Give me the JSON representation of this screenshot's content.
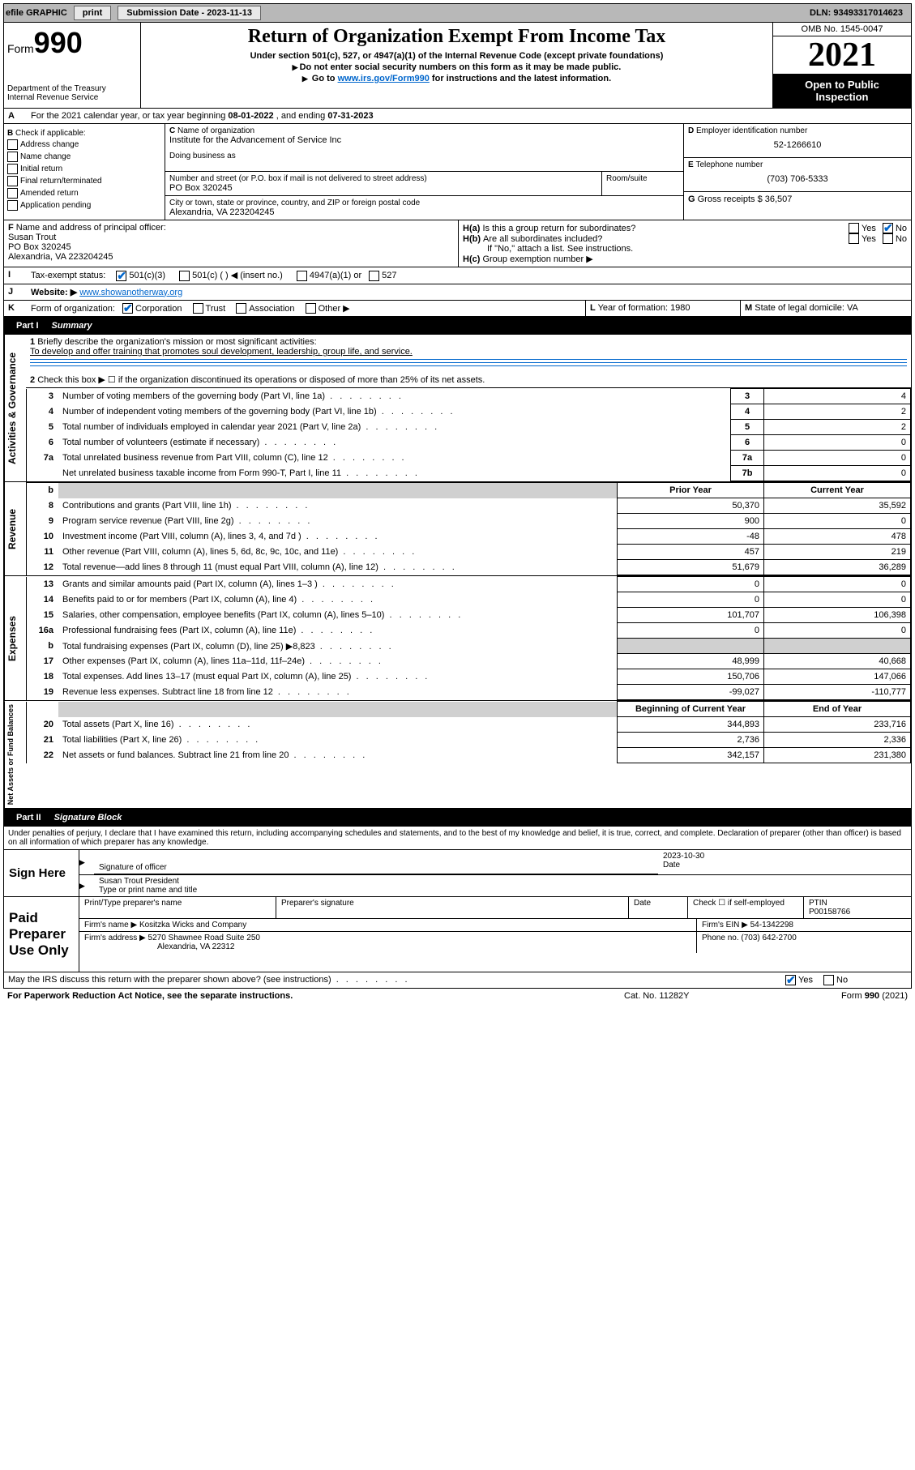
{
  "topbar": {
    "efile": "efile GRAPHIC",
    "print": "print",
    "submission_label": "Submission Date - ",
    "submission_date": "2023-11-13",
    "dln_label": "DLN: ",
    "dln": "93493317014623"
  },
  "header": {
    "form_word": "Form",
    "form_num": "990",
    "dept": "Department of the Treasury",
    "irs": "Internal Revenue Service",
    "title": "Return of Organization Exempt From Income Tax",
    "subtitle": "Under section 501(c), 527, or 4947(a)(1) of the Internal Revenue Code (except private foundations)",
    "note1": "Do not enter social security numbers on this form as it may be made public.",
    "note2_pre": "Go to ",
    "note2_link": "www.irs.gov/Form990",
    "note2_post": " for instructions and the latest information.",
    "omb": "OMB No. 1545-0047",
    "year": "2021",
    "open1": "Open to Public",
    "open2": "Inspection"
  },
  "A": {
    "text": "For the 2021 calendar year, or tax year beginning ",
    "begin": "08-01-2022",
    "mid": " , and ending ",
    "end": "07-31-2023"
  },
  "B": {
    "title": "Check if applicable:",
    "items": [
      "Address change",
      "Name change",
      "Initial return",
      "Final return/terminated",
      "Amended return",
      "Application pending"
    ]
  },
  "C": {
    "name_label": "Name of organization",
    "name": "Institute for the Advancement of Service Inc",
    "dba_label": "Doing business as",
    "street_label": "Number and street (or P.O. box if mail is not delivered to street address)",
    "room_label": "Room/suite",
    "street": "PO Box 320245",
    "city_label": "City or town, state or province, country, and ZIP or foreign postal code",
    "city": "Alexandria, VA  223204245"
  },
  "D": {
    "label": "Employer identification number",
    "value": "52-1266610"
  },
  "E": {
    "label": "Telephone number",
    "value": "(703) 706-5333"
  },
  "G": {
    "label": "Gross receipts $ ",
    "value": "36,507"
  },
  "F": {
    "label": "Name and address of principal officer:",
    "name": "Susan Trout",
    "street": "PO Box 320245",
    "city": "Alexandria, VA  223204245"
  },
  "H": {
    "a": "Is this a group return for subordinates?",
    "b": "Are all subordinates included?",
    "b_note": "If \"No,\" attach a list. See instructions.",
    "c": "Group exemption number ▶",
    "yes": "Yes",
    "no": "No"
  },
  "I": {
    "label": "Tax-exempt status:",
    "opts": [
      "501(c)(3)",
      "501(c) (  ) ◀ (insert no.)",
      "4947(a)(1) or",
      "527"
    ]
  },
  "J": {
    "label": "Website: ▶",
    "value": "www.showanotherway.org"
  },
  "K": {
    "label": "Form of organization:",
    "opts": [
      "Corporation",
      "Trust",
      "Association",
      "Other ▶"
    ]
  },
  "L": {
    "label": "Year of formation: ",
    "value": "1980"
  },
  "M": {
    "label": "State of legal domicile: ",
    "value": "VA"
  },
  "part1": {
    "label": "Part I",
    "title": "Summary",
    "q1": "Briefly describe the organization's mission or most significant activities:",
    "q1_ans": "To develop and offer training that promotes soul development, leadership, group life, and service.",
    "q2": "Check this box ▶ ☐  if the organization discontinued its operations or disposed of more than 25% of its net assets.",
    "governance": {
      "rows": [
        {
          "n": "3",
          "d": "Number of voting members of the governing body (Part VI, line 1a)",
          "k": "3",
          "v": "4"
        },
        {
          "n": "4",
          "d": "Number of independent voting members of the governing body (Part VI, line 1b)",
          "k": "4",
          "v": "2"
        },
        {
          "n": "5",
          "d": "Total number of individuals employed in calendar year 2021 (Part V, line 2a)",
          "k": "5",
          "v": "2"
        },
        {
          "n": "6",
          "d": "Total number of volunteers (estimate if necessary)",
          "k": "6",
          "v": "0"
        },
        {
          "n": "7a",
          "d": "Total unrelated business revenue from Part VIII, column (C), line 12",
          "k": "7a",
          "v": "0"
        },
        {
          "n": "",
          "d": "Net unrelated business taxable income from Form 990-T, Part I, line 11",
          "k": "7b",
          "v": "0"
        }
      ]
    },
    "col_headers": {
      "prior": "Prior Year",
      "current": "Current Year",
      "begin": "Beginning of Current Year",
      "end": "End of Year"
    },
    "revenue": [
      {
        "n": "8",
        "d": "Contributions and grants (Part VIII, line 1h)",
        "p": "50,370",
        "c": "35,592"
      },
      {
        "n": "9",
        "d": "Program service revenue (Part VIII, line 2g)",
        "p": "900",
        "c": "0"
      },
      {
        "n": "10",
        "d": "Investment income (Part VIII, column (A), lines 3, 4, and 7d )",
        "p": "-48",
        "c": "478"
      },
      {
        "n": "11",
        "d": "Other revenue (Part VIII, column (A), lines 5, 6d, 8c, 9c, 10c, and 11e)",
        "p": "457",
        "c": "219"
      },
      {
        "n": "12",
        "d": "Total revenue—add lines 8 through 11 (must equal Part VIII, column (A), line 12)",
        "p": "51,679",
        "c": "36,289"
      }
    ],
    "expenses": [
      {
        "n": "13",
        "d": "Grants and similar amounts paid (Part IX, column (A), lines 1–3 )",
        "p": "0",
        "c": "0"
      },
      {
        "n": "14",
        "d": "Benefits paid to or for members (Part IX, column (A), line 4)",
        "p": "0",
        "c": "0"
      },
      {
        "n": "15",
        "d": "Salaries, other compensation, employee benefits (Part IX, column (A), lines 5–10)",
        "p": "101,707",
        "c": "106,398"
      },
      {
        "n": "16a",
        "d": "Professional fundraising fees (Part IX, column (A), line 11e)",
        "p": "0",
        "c": "0"
      },
      {
        "n": "b",
        "d": "Total fundraising expenses (Part IX, column (D), line 25) ▶8,823",
        "p": "",
        "c": "",
        "shaded": true
      },
      {
        "n": "17",
        "d": "Other expenses (Part IX, column (A), lines 11a–11d, 11f–24e)",
        "p": "48,999",
        "c": "40,668"
      },
      {
        "n": "18",
        "d": "Total expenses. Add lines 13–17 (must equal Part IX, column (A), line 25)",
        "p": "150,706",
        "c": "147,066"
      },
      {
        "n": "19",
        "d": "Revenue less expenses. Subtract line 18 from line 12",
        "p": "-99,027",
        "c": "-110,777"
      }
    ],
    "net": [
      {
        "n": "20",
        "d": "Total assets (Part X, line 16)",
        "p": "344,893",
        "c": "233,716"
      },
      {
        "n": "21",
        "d": "Total liabilities (Part X, line 26)",
        "p": "2,736",
        "c": "2,336"
      },
      {
        "n": "22",
        "d": "Net assets or fund balances. Subtract line 21 from line 20",
        "p": "342,157",
        "c": "231,380"
      }
    ],
    "vlabels": {
      "gov": "Activities & Governance",
      "rev": "Revenue",
      "exp": "Expenses",
      "net": "Net Assets or Fund Balances"
    }
  },
  "part2": {
    "label": "Part II",
    "title": "Signature Block",
    "declaration": "Under penalties of perjury, I declare that I have examined this return, including accompanying schedules and statements, and to the best of my knowledge and belief, it is true, correct, and complete. Declaration of preparer (other than officer) is based on all information of which preparer has any knowledge.",
    "sign_here": "Sign Here",
    "sig_officer": "Signature of officer",
    "sig_date": "2023-10-30",
    "date_label": "Date",
    "officer_name": "Susan Trout  President",
    "type_name": "Type or print name and title",
    "paid_prep": "Paid Preparer Use Only",
    "prep_name_label": "Print/Type preparer's name",
    "prep_sig_label": "Preparer's signature",
    "check_if": "Check ☐ if self-employed",
    "ptin_label": "PTIN",
    "ptin": "P00158766",
    "firm_name_label": "Firm's name    ▶ ",
    "firm_name": "Kositzka Wicks and Company",
    "firm_ein_label": "Firm's EIN ▶ ",
    "firm_ein": "54-1342298",
    "firm_addr_label": "Firm's address ▶ ",
    "firm_addr1": "5270 Shawnee Road Suite 250",
    "firm_addr2": "Alexandria, VA  22312",
    "phone_label": "Phone no. ",
    "phone": "(703) 642-2700",
    "discuss": "May the IRS discuss this return with the preparer shown above? (see instructions)",
    "paperwork": "For Paperwork Reduction Act Notice, see the separate instructions.",
    "catno": "Cat. No. 11282Y",
    "formfoot": "Form 990 (2021)"
  }
}
